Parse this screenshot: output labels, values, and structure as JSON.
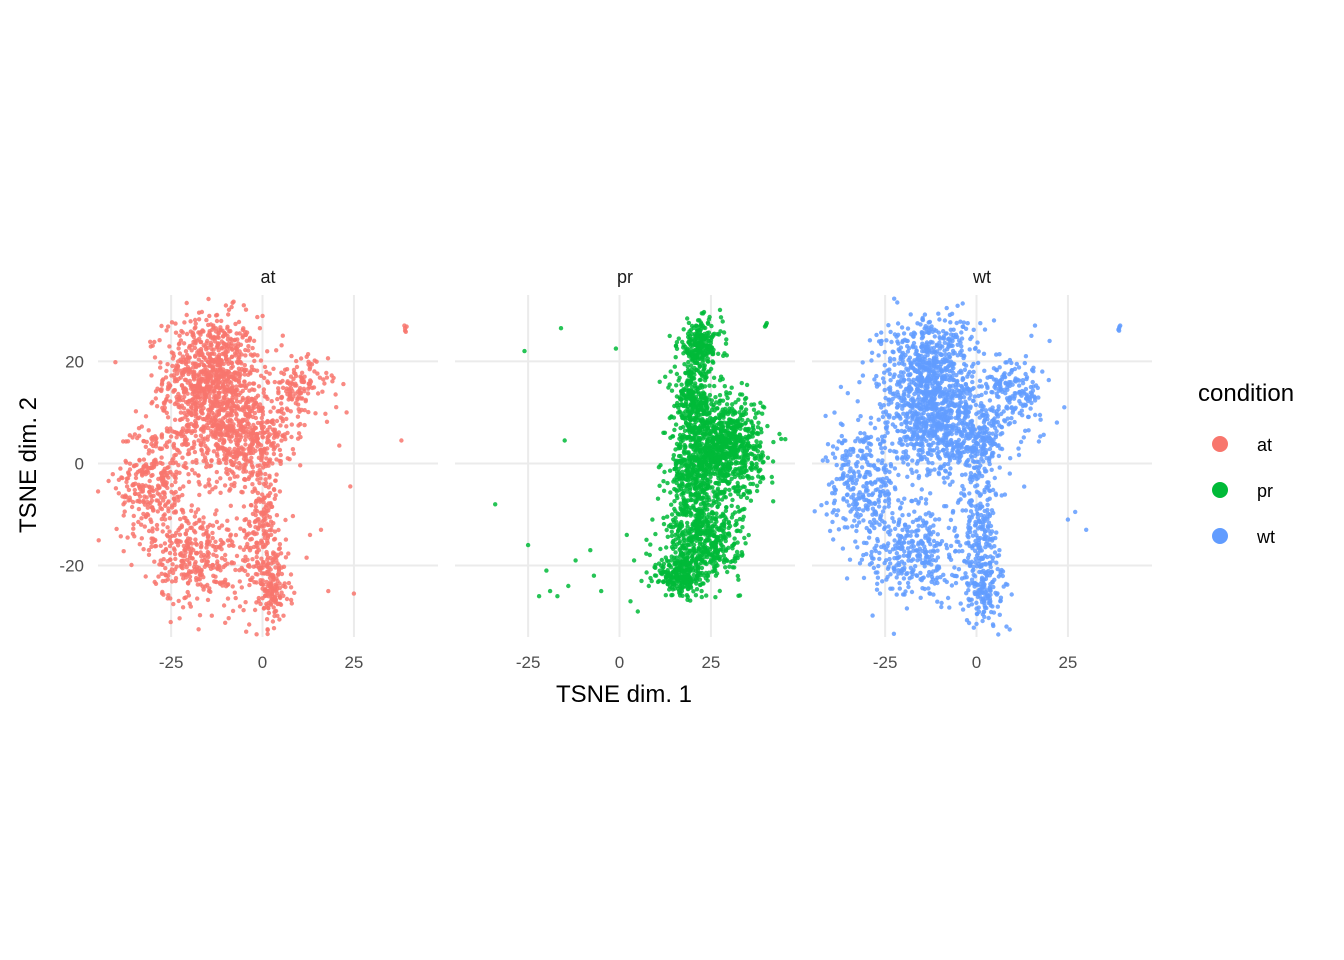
{
  "chart_data": {
    "type": "scatter",
    "facet_by": "condition",
    "xlabel": "TSNE dim. 1",
    "ylabel": "TSNE dim. 2",
    "xlim": [
      -45,
      48
    ],
    "ylim": [
      -34,
      33
    ],
    "x_ticks": [
      -25,
      0,
      25
    ],
    "x_tick_labels": [
      "-25",
      "0",
      "25"
    ],
    "y_ticks": [
      -20,
      0,
      20
    ],
    "y_tick_labels": [
      "-20",
      "0",
      "20"
    ],
    "grid": true,
    "legend": {
      "title": "condition",
      "position": "right",
      "entries": [
        {
          "label": "at",
          "color": "#F8766D"
        },
        {
          "label": "pr",
          "color": "#00BA38"
        },
        {
          "label": "wt",
          "color": "#619CFF"
        }
      ]
    },
    "panels": [
      {
        "name": "at",
        "color": "#F8766D",
        "point_count": 2600,
        "clusters": [
          {
            "cx": -14,
            "cy": 17,
            "sx": 6.5,
            "sy": 6,
            "w": 0.32
          },
          {
            "cx": -8,
            "cy": 6,
            "sx": 8,
            "sy": 5,
            "w": 0.22
          },
          {
            "cx": -30,
            "cy": -4,
            "sx": 5,
            "sy": 6,
            "w": 0.12
          },
          {
            "cx": -18,
            "cy": -18,
            "sx": 6,
            "sy": 5,
            "w": 0.13
          },
          {
            "cx": 0,
            "cy": -15,
            "sx": 3,
            "sy": 8,
            "w": 0.1
          },
          {
            "cx": 3,
            "cy": -25,
            "sx": 2.5,
            "sy": 3,
            "w": 0.04
          },
          {
            "cx": 10,
            "cy": 15,
            "sx": 4,
            "sy": 3,
            "w": 0.05
          },
          {
            "cx": 2,
            "cy": 4,
            "sx": 3,
            "sy": 3,
            "w": 0.02
          }
        ],
        "outliers": [
          [
            39,
            26.5
          ],
          [
            39.2,
            25.8
          ],
          [
            38.8,
            27
          ],
          [
            39,
            26
          ],
          [
            39.4,
            26.8
          ],
          [
            38,
            4.5
          ],
          [
            25,
            -25.5
          ],
          [
            24,
            -4.5
          ],
          [
            23,
            10
          ],
          [
            21,
            3.5
          ],
          [
            20,
            13.5
          ],
          [
            18,
            -25
          ],
          [
            16,
            -13
          ],
          [
            13,
            -14
          ]
        ]
      },
      {
        "name": "pr",
        "color": "#00BA38",
        "point_count": 2500,
        "clusters": [
          {
            "cx": 22,
            "cy": 23,
            "sx": 3,
            "sy": 2.5,
            "w": 0.1
          },
          {
            "cx": 20,
            "cy": 12,
            "sx": 2.5,
            "sy": 3,
            "w": 0.1
          },
          {
            "cx": 29,
            "cy": 3,
            "sx": 5,
            "sy": 5,
            "w": 0.35
          },
          {
            "cx": 20,
            "cy": -2,
            "sx": 3,
            "sy": 5,
            "w": 0.15
          },
          {
            "cx": 23,
            "cy": -15,
            "sx": 5,
            "sy": 4,
            "w": 0.2
          },
          {
            "cx": 17,
            "cy": -22,
            "sx": 3,
            "sy": 2,
            "w": 0.1
          }
        ],
        "outliers": [
          [
            40,
            27
          ],
          [
            40.3,
            27.5
          ],
          [
            39.8,
            26.8
          ],
          [
            40.1,
            27.2
          ],
          [
            -26,
            22
          ],
          [
            -16,
            26.5
          ],
          [
            -1,
            22.5
          ],
          [
            -15,
            4.5
          ],
          [
            -34,
            -8
          ],
          [
            -25,
            -16
          ],
          [
            -20,
            -21
          ],
          [
            -12,
            -19
          ],
          [
            -8,
            -17
          ],
          [
            -7,
            -22
          ],
          [
            -14,
            -24
          ],
          [
            -19,
            -25
          ],
          [
            -22,
            -26
          ],
          [
            -5,
            -25
          ],
          [
            2,
            -14
          ],
          [
            4,
            -19
          ],
          [
            6,
            -23
          ],
          [
            3,
            -27
          ],
          [
            5,
            -29
          ],
          [
            8,
            -24
          ],
          [
            10,
            -22
          ],
          [
            9,
            -11
          ],
          [
            12,
            6
          ],
          [
            11,
            16
          ],
          [
            14,
            18
          ],
          [
            -17,
            -26
          ]
        ]
      },
      {
        "name": "wt",
        "color": "#619CFF",
        "point_count": 2600,
        "clusters": [
          {
            "cx": -13,
            "cy": 17,
            "sx": 6.5,
            "sy": 6,
            "w": 0.3
          },
          {
            "cx": -8,
            "cy": 6,
            "sx": 8,
            "sy": 5,
            "w": 0.22
          },
          {
            "cx": -31,
            "cy": -4,
            "sx": 5,
            "sy": 6,
            "w": 0.12
          },
          {
            "cx": -17,
            "cy": -17,
            "sx": 6,
            "sy": 5,
            "w": 0.13
          },
          {
            "cx": 1,
            "cy": -14,
            "sx": 3,
            "sy": 8,
            "w": 0.1
          },
          {
            "cx": 3,
            "cy": -25,
            "sx": 2.5,
            "sy": 3,
            "w": 0.04
          },
          {
            "cx": 10,
            "cy": 14,
            "sx": 4,
            "sy": 3,
            "w": 0.06
          },
          {
            "cx": 3,
            "cy": 4,
            "sx": 3,
            "sy": 3,
            "w": 0.03
          }
        ],
        "outliers": [
          [
            39,
            26.5
          ],
          [
            39.3,
            27
          ],
          [
            38.8,
            26.2
          ],
          [
            39.1,
            26.8
          ],
          [
            39,
            26
          ],
          [
            30,
            -13
          ],
          [
            27,
            -9.5
          ],
          [
            25,
            -11
          ],
          [
            24,
            11
          ],
          [
            22,
            8
          ],
          [
            20,
            24
          ],
          [
            18,
            18
          ],
          [
            15,
            25
          ],
          [
            16,
            27
          ]
        ]
      }
    ]
  }
}
